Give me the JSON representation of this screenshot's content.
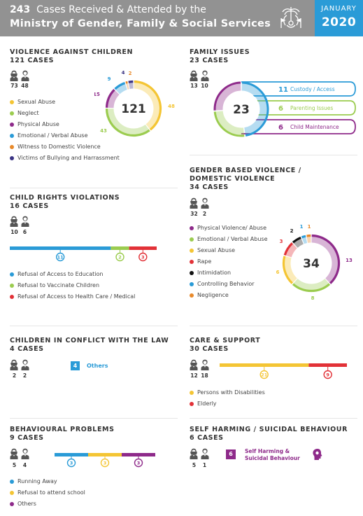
{
  "header": {
    "total": "243",
    "title_rest": "Cases Received & Attended by the",
    "ministry": "Ministry of Gender, Family & Social Services",
    "month": "JANUARY",
    "year": "2020"
  },
  "colors": {
    "header_bg": "#929292",
    "date_bg": "#2a9bd7",
    "yellow": "#f4c534",
    "green": "#9bcc4f",
    "purple": "#8e2a8a",
    "blue": "#2a9bd7",
    "orange": "#e8892a",
    "navy": "#3b3484",
    "red": "#e23137",
    "black": "#111111",
    "pink": "#c98bc3"
  },
  "chart_data": [
    {
      "id": "violence",
      "type": "pie",
      "title": "VIOLENCE AGAINST CHILDREN",
      "subtitle": "121 CASES",
      "center": "121",
      "gender": {
        "female": "73",
        "male": "48"
      },
      "labels": [
        "Sexual Abuse",
        "Neglect",
        "Physical Abuse",
        "Emotional / Verbal Abuse",
        "Witness to Domestic Violence",
        "Victims of Bullying and Harrassment"
      ],
      "values": [
        48,
        43,
        15,
        9,
        2,
        4
      ],
      "value_labels": [
        "48",
        "43",
        "15",
        "9",
        "2",
        "4"
      ]
    },
    {
      "id": "family",
      "type": "pie",
      "title": "FAMILY ISSUES",
      "subtitle": "23 CASES",
      "center": "23",
      "gender": {
        "female": "13",
        "male": "10"
      },
      "labels": [
        "Custody / Access",
        "Parenting Issues",
        "Child Maintenance"
      ],
      "values": [
        11,
        6,
        6
      ],
      "value_labels": [
        "11",
        "6",
        "6"
      ]
    },
    {
      "id": "gbv",
      "type": "pie",
      "title": "GENDER BASED VIOLENCE /",
      "title2": "DOMESTIC VIOLENCE",
      "subtitle": "34 CASES",
      "center": "34",
      "gender": {
        "female": "32",
        "male": "2"
      },
      "labels": [
        "Physical Violence/ Abuse",
        "Emotional / Verbal Abuse",
        "Sexual Abuse",
        "Rape",
        "Intimidation",
        "Controlling Behavior",
        "Negligence"
      ],
      "values": [
        13,
        8,
        6,
        3,
        2,
        1,
        1
      ],
      "value_labels": [
        "13",
        "8",
        "6",
        "3",
        "2",
        "1",
        "1"
      ]
    },
    {
      "id": "crv",
      "type": "bar",
      "title": "CHILD RIGHTS VIOLATIONS",
      "subtitle": "16 CASES",
      "gender": {
        "female": "10",
        "male": "6"
      },
      "labels": [
        "Refusal of Access to Education",
        "Refusal to Vaccinate Children",
        "Refusal of Access to Health Care / Medical"
      ],
      "values": [
        11,
        2,
        3
      ],
      "value_labels": [
        "11",
        "2",
        "3"
      ]
    },
    {
      "id": "care",
      "type": "bar",
      "title": "CARE & SUPPORT",
      "subtitle": "30 CASES",
      "gender": {
        "female": "12",
        "male": "18"
      },
      "labels": [
        "Persons with Disabilities",
        "Elderly"
      ],
      "values": [
        21,
        9
      ],
      "value_labels": [
        "21",
        "9"
      ]
    },
    {
      "id": "behav",
      "type": "bar",
      "title": "BEHAVIOURAL PROBLEMS",
      "subtitle": "9 CASES",
      "gender": {
        "female": "5",
        "male": "4"
      },
      "labels": [
        "Running Away",
        "Refusal to attend school",
        "Others"
      ],
      "values": [
        3,
        3,
        3
      ],
      "value_labels": [
        "3",
        "3",
        "3"
      ]
    }
  ],
  "conflict": {
    "title": "CHILDREN IN CONFLICT WITH THE LAW",
    "subtitle": "4 CASES",
    "gender": {
      "female": "2",
      "male": "2"
    },
    "value": "4",
    "label": "Others"
  },
  "selfharm": {
    "title": "SELF HARMING / SUICIDAL BEHAVIOUR",
    "subtitle": "6 CASES",
    "gender": {
      "female": "5",
      "male": "1"
    },
    "value": "6",
    "label1": "Self Harming &",
    "label2": "Suicidal Behaviour"
  }
}
